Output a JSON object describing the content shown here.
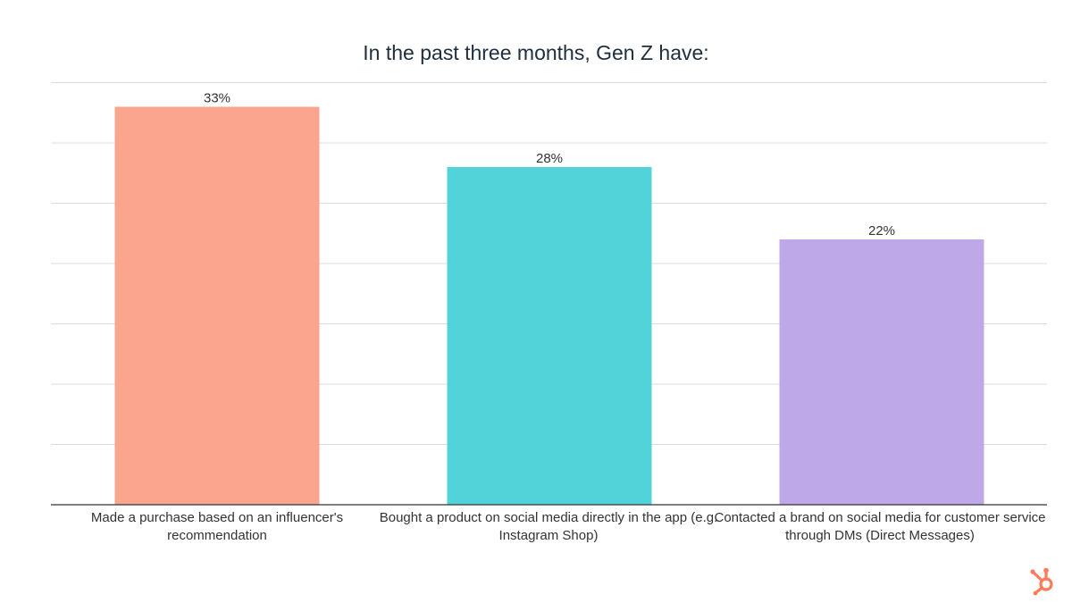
{
  "chart_data": {
    "type": "bar",
    "title": "In the past three months, Gen Z have:",
    "categories": [
      "Made a purchase based on an influencer's recommendation",
      "Bought a product on social media directly in the app (e.g. Instagram Shop)",
      "Contacted a brand on social media for customer service through DMs (Direct Messages)"
    ],
    "values": [
      33,
      28,
      22
    ],
    "value_labels": [
      "33%",
      "28%",
      "22%"
    ],
    "colors": [
      "#fca58e",
      "#51d3d9",
      "#bea8e8"
    ],
    "ylim": [
      0,
      35
    ],
    "grid": true,
    "legend": "none"
  },
  "brand": {
    "logo_icon": "hubspot-sprocket-icon",
    "logo_color": "#ff7a59"
  }
}
